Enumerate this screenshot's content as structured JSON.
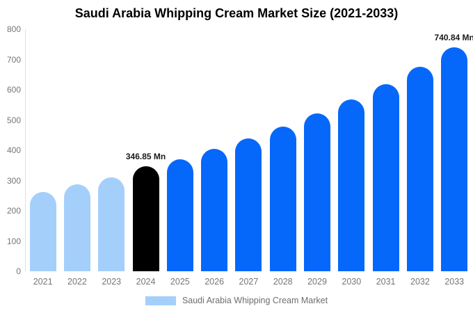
{
  "title": "Saudi Arabia Whipping Cream Market Size (2021-2033)",
  "colors": {
    "light_blue": "#A4CFFB",
    "bright_blue": "#0668FA",
    "highlight_black": "#000000",
    "axis_text": "#757575",
    "annotation_text": "#1a1a1a"
  },
  "legend": {
    "label": "Saudi Arabia Whipping Cream Market",
    "swatch_color": "#A4CFFB"
  },
  "y_axis": {
    "tick_values": [
      0,
      100,
      200,
      300,
      400,
      500,
      600,
      700,
      800
    ]
  },
  "chart_data": {
    "type": "bar",
    "title": "Saudi Arabia Whipping Cream Market Size (2021-2033)",
    "categories": [
      "2021",
      "2022",
      "2023",
      "2024",
      "2025",
      "2026",
      "2027",
      "2028",
      "2029",
      "2030",
      "2031",
      "2032",
      "2033"
    ],
    "values": [
      262,
      287,
      311,
      346.85,
      370,
      404,
      438,
      478,
      521,
      567,
      618,
      676,
      740.84
    ],
    "bar_colors": [
      "light",
      "light",
      "light",
      "black",
      "bright",
      "bright",
      "bright",
      "bright",
      "bright",
      "bright",
      "bright",
      "bright",
      "bright"
    ],
    "annotations": [
      {
        "category": "2024",
        "text": "346.85 Mn"
      },
      {
        "category": "2033",
        "text": "740.84 Mn"
      }
    ],
    "xlabel": "",
    "ylabel": "",
    "ylim": [
      0,
      800
    ],
    "grid": false,
    "legend_position": "bottom",
    "legend_entries": [
      "Saudi Arabia Whipping Cream Market"
    ]
  }
}
